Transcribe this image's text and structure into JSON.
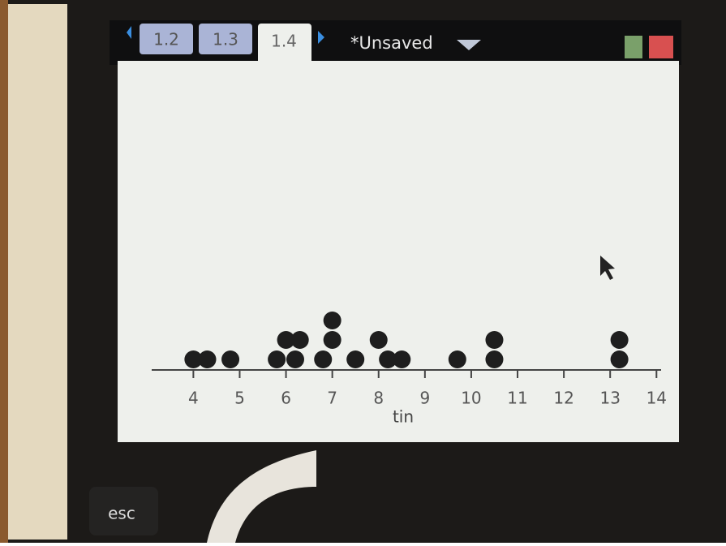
{
  "ui": {
    "tabs": [
      "1.2",
      "1.3",
      "1.4"
    ],
    "document": "*Unsaved",
    "key": "esc"
  },
  "chart_data": {
    "type": "dot",
    "x_label": "tin",
    "values": [
      4.0,
      4.3,
      4.8,
      5.8,
      6.2,
      6.0,
      6.3,
      6.8,
      7.0,
      7.0,
      7.5,
      8.2,
      8.5,
      8.0,
      9.7,
      10.5,
      10.5,
      13.2,
      13.2
    ],
    "color": "#1e1e1e",
    "xlim": [
      3.1,
      14.1
    ],
    "xticks": [
      4,
      5,
      6,
      7,
      8,
      9,
      10,
      11,
      12,
      13,
      14
    ]
  }
}
